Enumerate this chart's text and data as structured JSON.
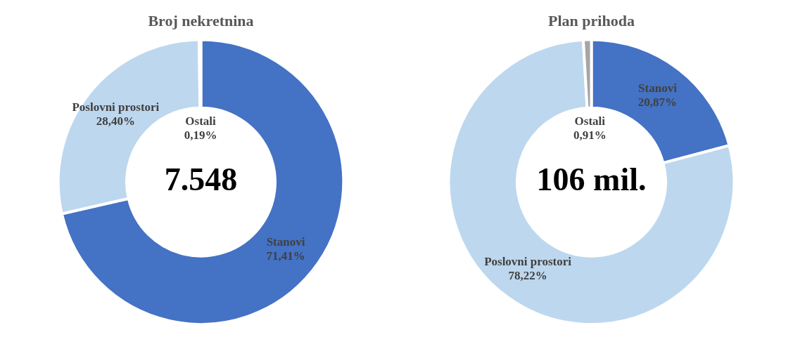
{
  "chart_data": [
    {
      "type": "donut",
      "title": "Broj nekretnina",
      "categories": [
        "Stanovi",
        "Poslovni prostori",
        "Ostali"
      ],
      "values": [
        71.41,
        28.4,
        0.19
      ],
      "colors": [
        "#4472c4",
        "#bdd7ee",
        "#a5a5a5"
      ],
      "value_labels": [
        "71,41%",
        "28,40%",
        "0,19%"
      ],
      "annotations": [
        "7.548"
      ],
      "legend": false
    },
    {
      "type": "donut",
      "title": "Plan prihoda",
      "categories": [
        "Stanovi",
        "Poslovni prostori",
        "Ostali"
      ],
      "values": [
        20.87,
        78.22,
        0.91
      ],
      "colors": [
        "#4472c4",
        "#bdd7ee",
        "#a5a5a5"
      ],
      "value_labels": [
        "20,87%",
        "78,22%",
        "0,91%"
      ],
      "annotations": [
        "106 mil."
      ],
      "legend": false
    }
  ]
}
